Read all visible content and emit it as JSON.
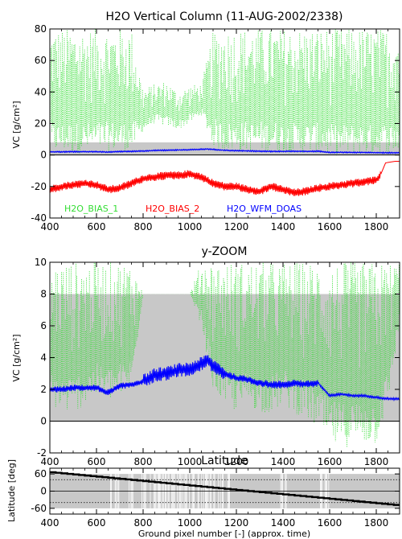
{
  "chart_data": [
    {
      "type": "line",
      "title": "H2O Vertical Column (11-AUG-2002/2338)",
      "xlabel": "",
      "ylabel": "VC [g/cm²]",
      "xlim": [
        400,
        1900
      ],
      "ylim": [
        -40,
        80
      ],
      "x_ticks": [
        400,
        600,
        800,
        1000,
        1200,
        1400,
        1600,
        1800
      ],
      "y_ticks": [
        -40,
        -20,
        0,
        20,
        40,
        60,
        80
      ],
      "shaded_band": [
        0,
        8
      ],
      "series": [
        {
          "name": "H2O_BIAS_1",
          "color": "#33dd33",
          "style": "dotted",
          "x": [
            400,
            450,
            500,
            550,
            600,
            650,
            700,
            750,
            800,
            850,
            900,
            950,
            1000,
            1050,
            1100,
            1150,
            1200,
            1250,
            1300,
            1350,
            1400,
            1450,
            1500,
            1550,
            1600,
            1650,
            1700,
            1750,
            1800,
            1850,
            1900
          ],
          "y": [
            8,
            10,
            12,
            18,
            8,
            5,
            10,
            4,
            30,
            33,
            31,
            30,
            33,
            38,
            20,
            8,
            6,
            12,
            10,
            6,
            5,
            8,
            6,
            5,
            5,
            6,
            5,
            5,
            5,
            6,
            6
          ],
          "spike_max": [
            80,
            80,
            80,
            80,
            80,
            80,
            80,
            80,
            42,
            45,
            47,
            40,
            44,
            45,
            78,
            80,
            80,
            80,
            80,
            80,
            80,
            80,
            80,
            80,
            80,
            80,
            80,
            80,
            80,
            80,
            80
          ],
          "spike_min": [
            1,
            1,
            1,
            1,
            2,
            2,
            2,
            2,
            15,
            20,
            18,
            16,
            20,
            25,
            5,
            2,
            2,
            2,
            2,
            2,
            1,
            1,
            1,
            1,
            0,
            -1,
            0,
            0,
            0,
            1,
            1
          ]
        },
        {
          "name": "H2O_BIAS_2",
          "color": "#ff0000",
          "style": "solid",
          "x": [
            400,
            450,
            500,
            550,
            600,
            650,
            700,
            750,
            800,
            850,
            900,
            950,
            1000,
            1050,
            1100,
            1150,
            1200,
            1250,
            1300,
            1350,
            1400,
            1450,
            1500,
            1550,
            1600,
            1650,
            1700,
            1750,
            1800,
            1820,
            1840,
            1880,
            1900
          ],
          "y": [
            -22,
            -20,
            -19,
            -18,
            -19,
            -22,
            -21,
            -18,
            -15,
            -14,
            -13,
            -13,
            -12,
            -14,
            -18,
            -20,
            -20,
            -22,
            -23,
            -20,
            -22,
            -24,
            -23,
            -21,
            -20,
            -19,
            -18,
            -17,
            -16,
            -12,
            -5,
            -4,
            -4
          ]
        },
        {
          "name": "H2O_WFM_DOAS",
          "color": "#0000ff",
          "style": "solid",
          "x": [
            400,
            450,
            500,
            550,
            600,
            650,
            700,
            750,
            800,
            850,
            900,
            950,
            1000,
            1050,
            1075,
            1100,
            1150,
            1200,
            1250,
            1300,
            1350,
            1400,
            1450,
            1500,
            1550,
            1600,
            1650,
            1700,
            1750,
            1800,
            1850,
            1900
          ],
          "y": [
            2,
            2,
            2.1,
            2.1,
            2.1,
            1.8,
            2.2,
            2.3,
            2.5,
            2.9,
            3.0,
            3.2,
            3.3,
            3.6,
            3.8,
            3.5,
            3.0,
            2.7,
            2.6,
            2.4,
            2.3,
            2.3,
            2.4,
            2.3,
            2.4,
            1.6,
            1.7,
            1.6,
            1.6,
            1.5,
            1.4,
            1.4
          ]
        }
      ],
      "legend": [
        "H2O_BIAS_1",
        "H2O_BIAS_2",
        "H2O_WFM_DOAS"
      ],
      "legend_position": "bottom-left"
    },
    {
      "type": "line",
      "title": "y-ZOOM",
      "xlabel": "",
      "ylabel": "VC [g/cm²]",
      "xlim": [
        400,
        1900
      ],
      "ylim": [
        -2,
        10
      ],
      "x_ticks": [
        400,
        600,
        800,
        1000,
        1200,
        1400,
        1600,
        1800
      ],
      "y_ticks": [
        -2,
        0,
        2,
        4,
        6,
        8,
        10
      ],
      "shaded_band": [
        0,
        8
      ],
      "series": [
        {
          "name": "H2O_BIAS_1",
          "color": "#33dd33",
          "style": "dotted",
          "x": [
            400,
            450,
            500,
            550,
            600,
            650,
            700,
            750,
            800,
            850,
            900,
            950,
            1000,
            1050,
            1100,
            1150,
            1200,
            1250,
            1300,
            1350,
            1400,
            1450,
            1500,
            1550,
            1600,
            1650,
            1700,
            1750,
            1800,
            1850,
            1900
          ],
          "spike_max": [
            10,
            10,
            10,
            10,
            10,
            10,
            10,
            10,
            8,
            8,
            8,
            8,
            8,
            10,
            10,
            10,
            10,
            10,
            10,
            10,
            10,
            10,
            10,
            10,
            10,
            10,
            10,
            10,
            10,
            10,
            10
          ],
          "spike_min": [
            1,
            0.5,
            0.5,
            1,
            1.5,
            1.2,
            1.5,
            2,
            8,
            8,
            8,
            8,
            8,
            6,
            2,
            1,
            0.5,
            1,
            0.5,
            0.5,
            1,
            0.5,
            0,
            -0.5,
            -1.5,
            -1.8,
            -1.5,
            -1.5,
            -1.5,
            1,
            6
          ]
        },
        {
          "name": "H2O_WFM_DOAS",
          "color": "#0000ff",
          "style": "solid",
          "x": [
            400,
            450,
            500,
            550,
            600,
            650,
            700,
            750,
            800,
            850,
            900,
            950,
            1000,
            1050,
            1075,
            1100,
            1150,
            1200,
            1250,
            1300,
            1350,
            1400,
            1450,
            1500,
            1550,
            1600,
            1650,
            1700,
            1750,
            1800,
            1850,
            1900
          ],
          "y": [
            2,
            2,
            2.1,
            2.1,
            2.1,
            1.8,
            2.2,
            2.3,
            2.5,
            2.9,
            3.0,
            3.2,
            3.3,
            3.6,
            3.8,
            3.5,
            3.0,
            2.7,
            2.6,
            2.4,
            2.3,
            2.3,
            2.4,
            2.3,
            2.4,
            1.6,
            1.7,
            1.6,
            1.6,
            1.5,
            1.4,
            1.4
          ]
        }
      ]
    },
    {
      "type": "line",
      "title": "Latitude",
      "xlabel": "Ground pixel number [-] (approx. time)",
      "ylabel": "Latitude [deg]",
      "xlim": [
        400,
        1900
      ],
      "ylim": [
        -80,
        80
      ],
      "x_ticks": [
        400,
        600,
        800,
        1000,
        1200,
        1400,
        1600,
        1800
      ],
      "y_ticks": [
        -60,
        0,
        60
      ],
      "dotted_reference_lines": [
        -40,
        40
      ],
      "shaded_band": [
        -60,
        60
      ],
      "series": [
        {
          "name": "",
          "color": "#000000",
          "style": "solid",
          "x": [
            400,
            1900
          ],
          "y": [
            66,
            -50
          ]
        }
      ]
    }
  ]
}
